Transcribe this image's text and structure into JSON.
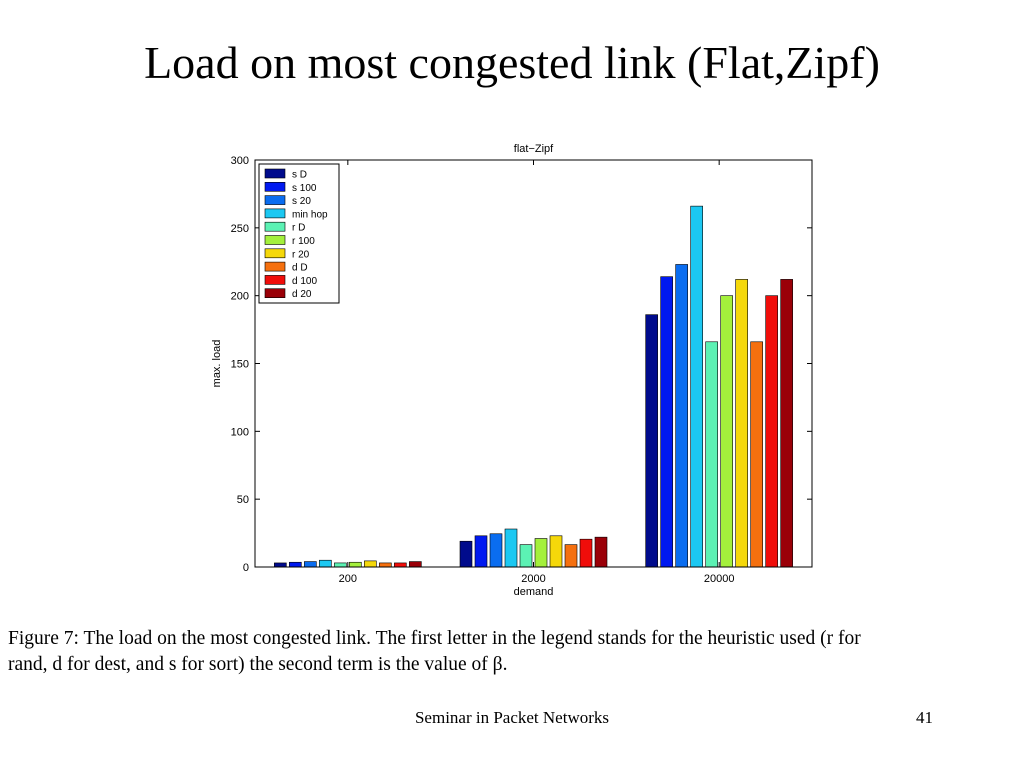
{
  "slide": {
    "title": "Load on most congested link (Flat,Zipf)",
    "caption_line1": "Figure 7: The load on the most congested link. The first letter in the legend stands for the heuristic used (r for",
    "caption_line2": "rand, d for dest, and s for sort) the second term is the value of β.",
    "footer": "Seminar in Packet Networks",
    "page_number": "41"
  },
  "chart_data": {
    "type": "bar",
    "title": "flat−Zipf",
    "xlabel": "demand",
    "ylabel": "max. load",
    "categories": [
      "200",
      "2000",
      "20000"
    ],
    "ylim": [
      0,
      300
    ],
    "yticks": [
      0,
      50,
      100,
      150,
      200,
      250,
      300
    ],
    "legend_position": "top-left",
    "grid": false,
    "series": [
      {
        "name": "s D",
        "color": "#000b8c",
        "values": [
          3,
          19,
          186
        ]
      },
      {
        "name": "s 100",
        "color": "#0019f0",
        "values": [
          3.5,
          23,
          214
        ]
      },
      {
        "name": "s 20",
        "color": "#0a6df0",
        "values": [
          4,
          24.5,
          223
        ]
      },
      {
        "name": "min hop",
        "color": "#1cc8f2",
        "values": [
          5,
          28,
          266
        ]
      },
      {
        "name": "r D",
        "color": "#5cf2b4",
        "values": [
          3,
          16.5,
          166
        ]
      },
      {
        "name": "r 100",
        "color": "#a4f03c",
        "values": [
          3.5,
          21,
          200
        ]
      },
      {
        "name": "r 20",
        "color": "#f5d80a",
        "values": [
          4.5,
          23,
          212
        ]
      },
      {
        "name": "d D",
        "color": "#f5700f",
        "values": [
          3,
          16.5,
          166
        ]
      },
      {
        "name": "d 100",
        "color": "#f00d0a",
        "values": [
          3,
          20.5,
          200
        ]
      },
      {
        "name": "d 20",
        "color": "#9a0008",
        "values": [
          4,
          22,
          212
        ]
      }
    ]
  }
}
